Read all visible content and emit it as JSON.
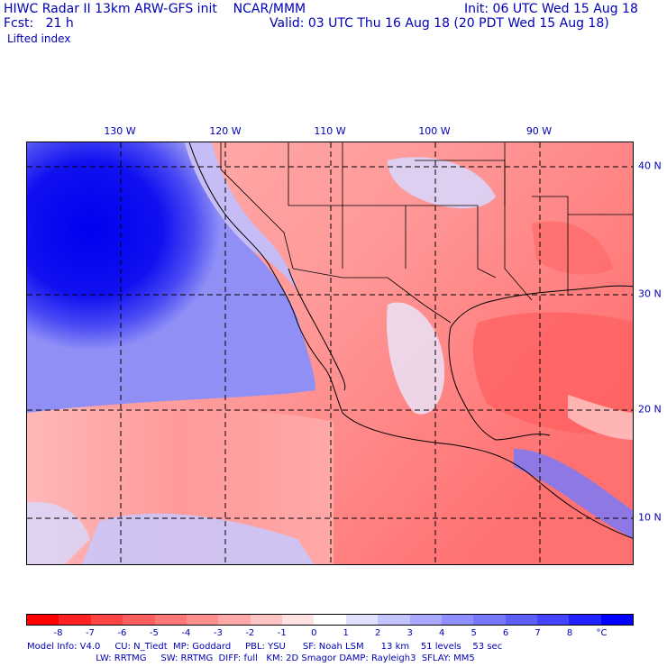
{
  "header": {
    "line1_left": "HIWC Radar II 13km ARW-GFS init    NCAR/MMM",
    "line1_right": "Init: 06 UTC Wed 15 Aug 18",
    "line2_left": "Fcst:   21 h",
    "line2_right": "Valid: 03 UTC Thu 16 Aug 18 (20 PDT Wed 15 Aug 18)",
    "field": "Lifted index"
  },
  "map": {
    "lon_labels": [
      "130 W",
      "120 W",
      "110 W",
      "100 W",
      "90 W"
    ],
    "lat_labels": [
      "40 N",
      "30 N",
      "20 N",
      "10 N"
    ]
  },
  "colorbar": {
    "labels": [
      "-8",
      "-7",
      "-6",
      "-5",
      "-4",
      "-3",
      "-2",
      "-1",
      "0",
      "1",
      "2",
      "3",
      "4",
      "5",
      "6",
      "7",
      "8",
      "°C"
    ],
    "colors": [
      "#ff0000",
      "#ff2222",
      "#ff4444",
      "#ff5e5e",
      "#ff7777",
      "#ff8f8f",
      "#ffa8a8",
      "#ffc4c4",
      "#ffe2e2",
      "#ffffff",
      "#e2e2ff",
      "#c4c4ff",
      "#a8a8ff",
      "#8f8fff",
      "#7777ff",
      "#5e5eff",
      "#4444ff",
      "#2222ff",
      "#0000ff"
    ]
  },
  "footer": {
    "line1": "Model Info: V4.0     CU: N_Tiedt  MP: Goddard     PBL: YSU      SF: Noah LSM      13 km    51 levels    53 sec",
    "line2": "                        LW: RRTMG     SW: RRTMG  DIFF: full   KM: 2D Smagor DAMP: Rayleigh3  SFLAY: MM5"
  }
}
